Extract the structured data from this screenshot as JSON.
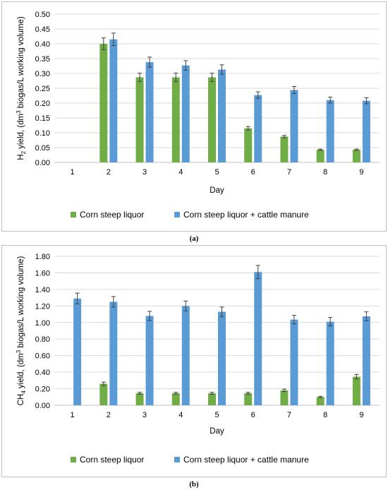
{
  "chart_data": [
    {
      "type": "bar",
      "panel_label": "(a)",
      "xlabel": "Day",
      "ylabel_prefix": "H",
      "ylabel_sub": "2",
      "ylabel_mid": " yield, (dm",
      "ylabel_sup": "3",
      "ylabel_suffix": " biogas/L working volume)",
      "ylim": [
        0,
        0.5
      ],
      "yticks": [
        "0.00",
        "0.05",
        "0.10",
        "0.15",
        "0.20",
        "0.25",
        "0.30",
        "0.35",
        "0.40",
        "0.45",
        "0.50"
      ],
      "ytick_values": [
        0,
        0.05,
        0.1,
        0.15,
        0.2,
        0.25,
        0.3,
        0.35,
        0.4,
        0.45,
        0.5
      ],
      "categories": [
        "1",
        "2",
        "3",
        "4",
        "5",
        "6",
        "7",
        "8",
        "9"
      ],
      "grid": true,
      "legend_position": "bottom",
      "series": [
        {
          "name": "Corn steep liquor",
          "color": "#70ad47",
          "values": [
            0,
            0.4,
            0.287,
            0.287,
            0.287,
            0.115,
            0.087,
            0.043,
            0.043
          ],
          "errors": [
            0,
            0.02,
            0.014,
            0.014,
            0.014,
            0.006,
            0.004,
            0.002,
            0.002
          ]
        },
        {
          "name": "Corn steep liquor + cattle manure",
          "color": "#5b9bd5",
          "values": [
            0,
            0.415,
            0.338,
            0.327,
            0.313,
            0.227,
            0.244,
            0.21,
            0.208
          ],
          "errors": [
            0,
            0.021,
            0.017,
            0.016,
            0.016,
            0.011,
            0.012,
            0.01,
            0.01
          ]
        }
      ]
    },
    {
      "type": "bar",
      "panel_label": "(b)",
      "xlabel": "Day",
      "ylabel_prefix": "CH",
      "ylabel_sub": "4",
      "ylabel_mid": " yield, (dm",
      "ylabel_sup": "3",
      "ylabel_suffix": " biogas/L working volume)",
      "ylim": [
        0,
        1.8
      ],
      "yticks": [
        "0.00",
        "0.20",
        "0.40",
        "0.60",
        "0.80",
        "1.00",
        "1.20",
        "1.40",
        "1.60",
        "1.80"
      ],
      "ytick_values": [
        0,
        0.2,
        0.4,
        0.6,
        0.8,
        1.0,
        1.2,
        1.4,
        1.6,
        1.8
      ],
      "categories": [
        "1",
        "2",
        "3",
        "4",
        "5",
        "6",
        "7",
        "8",
        "9"
      ],
      "grid": true,
      "legend_position": "bottom",
      "series": [
        {
          "name": "Corn steep liquor",
          "color": "#70ad47",
          "values": [
            0,
            0.26,
            0.145,
            0.145,
            0.145,
            0.145,
            0.18,
            0.1,
            0.345
          ],
          "errors": [
            0,
            0.02,
            0.012,
            0.012,
            0.012,
            0.012,
            0.015,
            0.008,
            0.028
          ]
        },
        {
          "name": "Corn steep liquor + cattle manure",
          "color": "#5b9bd5",
          "values": [
            1.29,
            1.25,
            1.08,
            1.2,
            1.13,
            1.61,
            1.035,
            1.01,
            1.075
          ],
          "errors": [
            0.065,
            0.063,
            0.055,
            0.06,
            0.057,
            0.08,
            0.052,
            0.051,
            0.054
          ]
        }
      ]
    }
  ],
  "captions": {
    "a": "(a)",
    "b": "(b)"
  }
}
